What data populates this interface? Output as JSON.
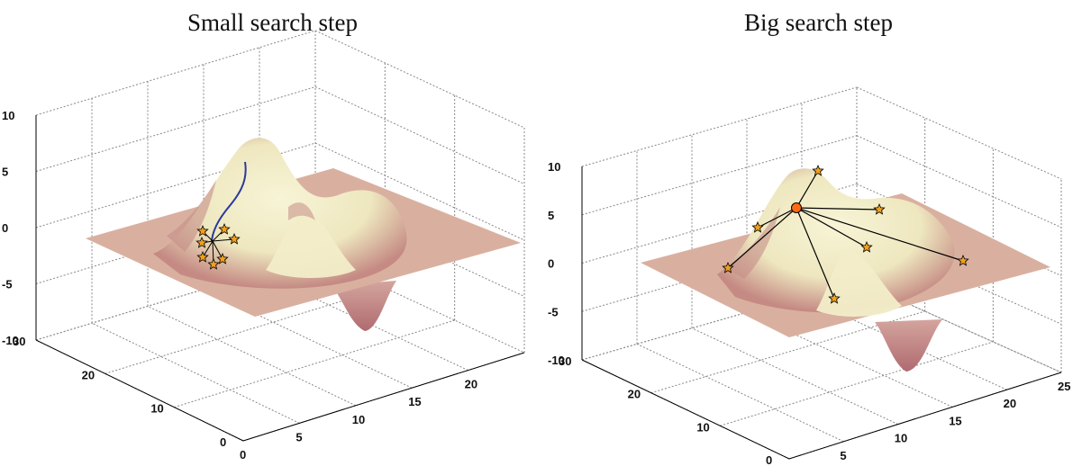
{
  "chart_data": [
    {
      "type": "surface",
      "title": "Small search step",
      "xlim": [
        0,
        25
      ],
      "ylim": [
        0,
        30
      ],
      "zlim": [
        -10,
        10
      ],
      "x_ticks": [
        "0",
        "5",
        "10",
        "15",
        "20"
      ],
      "y_ticks": [
        "0",
        "10",
        "20",
        "30"
      ],
      "z_ticks": [
        "10",
        "5",
        "0",
        "-5",
        "-10"
      ],
      "search_path": "short curved path climbing the nearest peak",
      "center_point": {
        "x": 8,
        "y": 18,
        "z": -1
      },
      "neighbors": 7,
      "grid": true
    },
    {
      "type": "surface",
      "title": "Big search step",
      "xlim": [
        0,
        25
      ],
      "ylim": [
        0,
        30
      ],
      "zlim": [
        -10,
        10
      ],
      "x_ticks": [
        "0",
        "5",
        "10",
        "15",
        "20",
        "25"
      ],
      "y_ticks": [
        "0",
        "10",
        "20",
        "30"
      ],
      "z_ticks": [
        "10",
        "5",
        "0",
        "-5",
        "-10"
      ],
      "center_point": {
        "x": 11,
        "y": 19,
        "z": 4
      },
      "neighbors": 8,
      "grid": true
    }
  ],
  "colors": {
    "surface_light": "#efeac4",
    "surface_dark": "#b47878",
    "path": "#2a3a9a",
    "star": "#f0a020",
    "center": "#ff6a13",
    "grid": "#888888"
  }
}
